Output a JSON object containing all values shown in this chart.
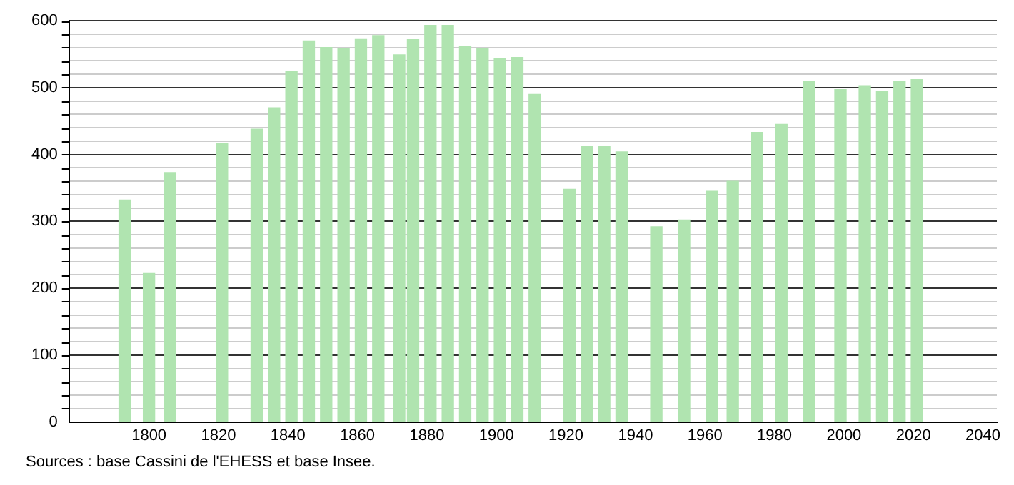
{
  "chart_data": {
    "type": "bar",
    "x": [
      1793,
      1800,
      1806,
      1821,
      1831,
      1836,
      1841,
      1846,
      1851,
      1856,
      1861,
      1866,
      1872,
      1876,
      1881,
      1886,
      1891,
      1896,
      1901,
      1906,
      1911,
      1921,
      1926,
      1931,
      1936,
      1946,
      1954,
      1962,
      1968,
      1975,
      1982,
      1990,
      1999,
      2006,
      2011,
      2016,
      2021
    ],
    "values": [
      332,
      222,
      373,
      417,
      438,
      470,
      524,
      570,
      560,
      558,
      573,
      578,
      549,
      572,
      593,
      593,
      562,
      558,
      543,
      545,
      490,
      348,
      412,
      412,
      404,
      292,
      302,
      345,
      360,
      433,
      445,
      510,
      497,
      503,
      495,
      510,
      512
    ],
    "color": "#b0e4b0",
    "xlim": [
      1777,
      2044
    ],
    "xticks": [
      1800,
      1820,
      1840,
      1860,
      1880,
      1900,
      1920,
      1940,
      1960,
      1980,
      2000,
      2020,
      2040
    ],
    "ylim": [
      0,
      600
    ],
    "yticks": [
      0,
      {
        "value": 20,
        "label": null
      },
      {
        "value": 40,
        "label": null
      },
      {
        "value": 60,
        "label": null
      },
      {
        "value": 80,
        "label": null
      },
      100,
      {
        "value": 120,
        "label": null
      },
      {
        "value": 140,
        "label": null
      },
      {
        "value": 160,
        "label": null
      },
      {
        "value": 180,
        "label": null
      },
      200,
      {
        "value": 220,
        "label": null
      },
      {
        "value": 240,
        "label": null
      },
      {
        "value": 260,
        "label": null
      },
      {
        "value": 280,
        "label": null
      },
      300,
      {
        "value": 320,
        "label": null
      },
      {
        "value": 340,
        "label": null
      },
      {
        "value": 360,
        "label": null
      },
      {
        "value": 380,
        "label": null
      },
      400,
      {
        "value": 420,
        "label": null
      },
      {
        "value": 440,
        "label": null
      },
      {
        "value": 460,
        "label": null
      },
      {
        "value": 480,
        "label": null
      },
      500,
      {
        "value": 520,
        "label": null
      },
      {
        "value": 540,
        "label": null
      },
      {
        "value": 560,
        "label": null
      },
      {
        "value": 580,
        "label": null
      },
      600
    ],
    "grid": "y",
    "legend": false,
    "annotations": [
      "Sources : base Cassini de l'EHESS et base Insee."
    ]
  }
}
